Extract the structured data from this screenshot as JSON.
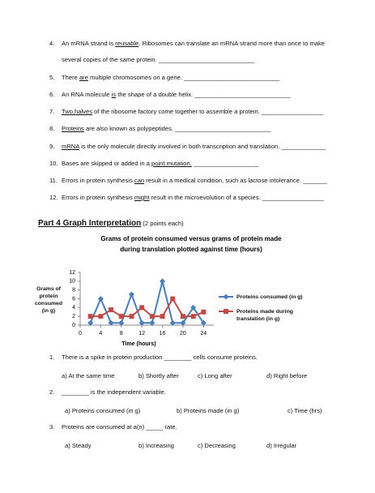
{
  "items": [
    {
      "number": "4.",
      "parts": [
        {
          "text": "An mRNA strand is "
        },
        {
          "text": "reusable",
          "underline": true
        },
        {
          "text": ". Ribosomes can translate an mRNA strand more than once to make several copies of the same protein. ____________________________"
        }
      ]
    },
    {
      "number": "5.",
      "parts": [
        {
          "text": "There "
        },
        {
          "text": "are",
          "underline": true
        },
        {
          "text": " multiple chromosomes on a gene. ____________________________"
        }
      ]
    },
    {
      "number": "6.",
      "parts": [
        {
          "text": "An RNA molecule "
        },
        {
          "text": "is",
          "underline": true
        },
        {
          "text": " the shape of a double helix. ____________________________"
        }
      ]
    },
    {
      "number": "7.",
      "parts": [
        {
          "text": "Two halves",
          "underline": true
        },
        {
          "text": " of the ribosome factory come together to assemble a protein. __________________"
        }
      ]
    },
    {
      "number": "8.",
      "parts": [
        {
          "text": "Proteins",
          "underline": true
        },
        {
          "text": " are also known as polypeptides. ____________________________"
        }
      ]
    },
    {
      "number": "9.",
      "parts": [
        {
          "text": "mRNA",
          "underline": true
        },
        {
          "text": " is the only molecule directly involved in both transcription and translation. _____________"
        }
      ]
    },
    {
      "number": "10.",
      "parts": [
        {
          "text": "Bases are skipped or added in a "
        },
        {
          "text": "point mutation.",
          "underline": true
        },
        {
          "text": " ___________________"
        }
      ]
    },
    {
      "number": "11.",
      "parts": [
        {
          "text": "Errors in protein synthesis "
        },
        {
          "text": "can",
          "underline": true
        },
        {
          "text": " result in a medical condition, such as lactose intolerance. _______"
        }
      ]
    },
    {
      "number": "12.",
      "parts": [
        {
          "text": "Errors in protein synthesis "
        },
        {
          "text": "might",
          "underline": true
        },
        {
          "text": " result in the microevolution of a species. __________________"
        }
      ]
    }
  ],
  "section": {
    "title": "Part 4 Graph Interpretation",
    "note": "(2 points each)"
  },
  "chart_data": {
    "type": "line",
    "title": [
      "Grams of protein consumed versus grams of protein made",
      "during translation plotted against time (hours)"
    ],
    "y_label": "Grams of protein consumed (in g)",
    "x_label": "Time (hours)",
    "x": [
      2,
      4,
      6,
      8,
      10,
      12,
      14,
      16,
      18,
      20,
      22,
      24
    ],
    "series": [
      {
        "name": "Proteins consumed (in g)",
        "color": "#4a7ebb",
        "marker": "diamond",
        "values": [
          0.5,
          6,
          0.5,
          0.5,
          7,
          0.5,
          0.5,
          10,
          0.5,
          0.5,
          4,
          0.5
        ]
      },
      {
        "name": "Proteins made during translation (in g)",
        "color": "#be4b48",
        "marker": "square",
        "values": [
          2,
          2,
          3.5,
          2,
          2,
          4,
          2,
          2,
          6,
          2,
          2,
          3
        ]
      }
    ],
    "xlim": [
      0,
      26
    ],
    "xticks": [
      0,
      4,
      8,
      12,
      16,
      20,
      24
    ],
    "ylim": [
      0,
      12
    ],
    "yticks": [
      0,
      2,
      4,
      6,
      8,
      10,
      12
    ],
    "grid": false,
    "legend": "right"
  },
  "questions": [
    {
      "number": "1.",
      "text": "There is a spike in protein production ________ cells consume proteins.",
      "choices": [
        "a) At the same time",
        "b) Shortly after",
        "c) Long after",
        "d) Right before"
      ]
    },
    {
      "number": "2.",
      "text": "________ is the independent variable.",
      "choices": [
        "a) Proteins consumed (in g)",
        "b) Proteins made (in g)",
        "c) Time (hrs)"
      ]
    },
    {
      "number": "3.",
      "text": "Proteins are consumed at a(n) _____ rate.",
      "choices": [
        "a) Steady",
        "b) Increasing",
        "c) Decreasing",
        "d) Irregular"
      ]
    }
  ]
}
